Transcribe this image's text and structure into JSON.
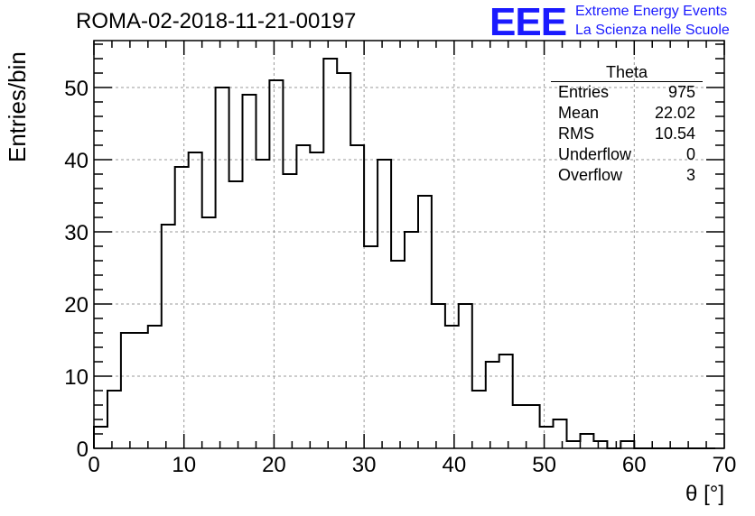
{
  "header": {
    "title": "ROMA-02-2018-11-21-00197",
    "logo": "EEE",
    "logo_line1": "Extreme Energy Events",
    "logo_line2": "La Scienza nelle Scuole"
  },
  "stats": {
    "name": "Theta",
    "rows": [
      {
        "label": "Entries",
        "value": "975"
      },
      {
        "label": "Mean",
        "value": "22.02"
      },
      {
        "label": "RMS",
        "value": "10.54"
      },
      {
        "label": "Underflow",
        "value": "0"
      },
      {
        "label": "Overflow",
        "value": "3"
      }
    ]
  },
  "chart_data": {
    "type": "bar",
    "histogram": true,
    "title": "ROMA-02-2018-11-21-00197",
    "xlabel": "θ [°]",
    "ylabel": "Entries/bin",
    "xlim": [
      0,
      70
    ],
    "ylim": [
      0,
      56.5
    ],
    "bin_width": 1.5,
    "bin_edges_start": 0,
    "xticks": [
      0,
      10,
      20,
      30,
      40,
      50,
      60,
      70
    ],
    "yticks": [
      0,
      10,
      20,
      30,
      40,
      50
    ],
    "grid": true,
    "values": [
      3,
      8,
      16,
      16,
      17,
      31,
      39,
      41,
      32,
      50,
      37,
      49,
      40,
      51,
      38,
      42,
      41,
      54,
      52,
      42,
      28,
      40,
      26,
      30,
      35,
      20,
      17,
      20,
      8,
      12,
      13,
      6,
      6,
      3,
      4,
      1,
      2,
      1,
      0,
      1,
      0,
      0,
      0,
      0,
      0,
      0,
      0
    ]
  },
  "colors": {
    "line": "#000000",
    "grid": "#999999",
    "logo": "#1a1aff"
  }
}
